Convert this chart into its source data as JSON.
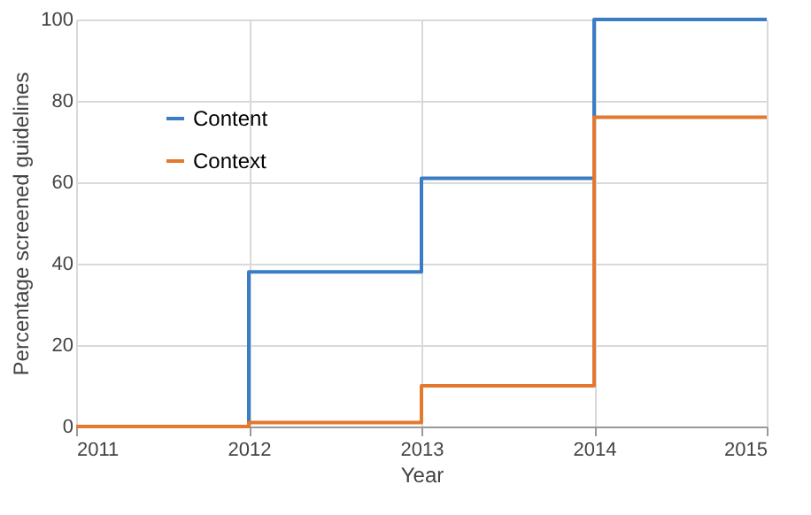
{
  "chart_data": {
    "type": "step",
    "xlabel": "Year",
    "ylabel": "Percentage screened guidelines",
    "x": [
      2011,
      2012,
      2013,
      2014,
      2015
    ],
    "series": [
      {
        "name": "Content",
        "color": "#3b7dc4",
        "values": [
          0,
          38,
          61,
          100,
          100
        ]
      },
      {
        "name": "Context",
        "color": "#e4782e",
        "values": [
          0,
          1,
          10,
          76,
          76
        ]
      }
    ],
    "xlim": [
      2011,
      2015
    ],
    "xticks": [
      2011,
      2012,
      2013,
      2014,
      2015
    ],
    "ylim": [
      0,
      100
    ],
    "yticks": [
      0,
      20,
      40,
      60,
      80,
      100
    ],
    "grid": true,
    "legend": "top left",
    "marker": "none",
    "line_style": "solid"
  }
}
